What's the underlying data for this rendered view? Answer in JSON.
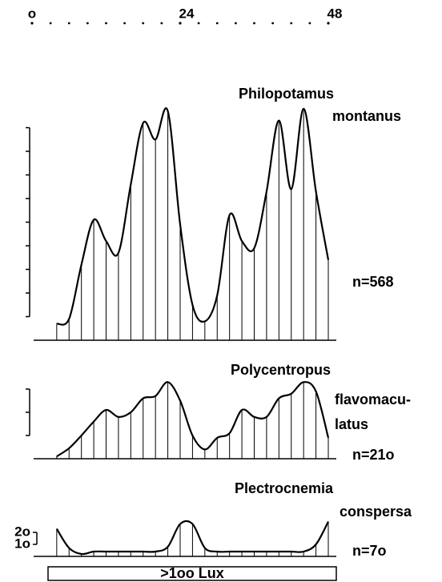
{
  "chart_data": [
    {
      "type": "area",
      "title": [
        "Philopotamus",
        "montanus"
      ],
      "annotation": "n=568",
      "xlim": [
        0,
        48
      ],
      "xticks": [
        {
          "value": 0,
          "label": "o"
        },
        24,
        48
      ],
      "minor_xticks": [
        3,
        6,
        9,
        12,
        15,
        18,
        21,
        27,
        30,
        33,
        36,
        39,
        42,
        45
      ],
      "x": [
        4,
        6,
        8,
        10,
        12,
        14,
        16,
        18,
        20,
        22,
        24,
        26,
        28,
        30,
        32,
        34,
        36,
        38,
        40,
        42,
        44,
        46,
        48
      ],
      "values": [
        7,
        9,
        32,
        51,
        42,
        37,
        66,
        92,
        85,
        97,
        49,
        15,
        8,
        19,
        53,
        42,
        39,
        63,
        93,
        64,
        98,
        63,
        34
      ],
      "color": "#000000",
      "ylim": [
        0,
        100
      ],
      "yticks": [
        10,
        20,
        30,
        40,
        50,
        60,
        70,
        80,
        90
      ]
    },
    {
      "type": "area",
      "title": [
        "Polycentropus",
        "flavomacu-",
        "latus"
      ],
      "annotation": "n=21o",
      "xlim": [
        0,
        48
      ],
      "x": [
        4,
        6,
        8,
        10,
        12,
        14,
        16,
        18,
        20,
        22,
        24,
        26,
        28,
        30,
        32,
        34,
        36,
        38,
        40,
        42,
        44,
        46,
        48
      ],
      "values": [
        1,
        4.5,
        10,
        16,
        21,
        18,
        20,
        26,
        27,
        33,
        25,
        10,
        4,
        9,
        11,
        21,
        18,
        18,
        26,
        28,
        33,
        29,
        9
      ],
      "color": "#000000",
      "ylim": [
        0,
        40
      ],
      "yticks": [
        10,
        20,
        30
      ]
    },
    {
      "type": "area",
      "title": [
        "Plectrocnemia",
        "conspersa"
      ],
      "annotation": "n=7o",
      "xlim": [
        0,
        48
      ],
      "x": [
        4,
        6,
        8,
        10,
        12,
        14,
        16,
        18,
        20,
        22,
        24,
        26,
        28,
        30,
        32,
        34,
        36,
        38,
        40,
        42,
        44,
        46,
        48
      ],
      "values": [
        23,
        7,
        2,
        4,
        4,
        4,
        4,
        4,
        4,
        8,
        27,
        27,
        7,
        4,
        4,
        4,
        4,
        4,
        4,
        4,
        4,
        10,
        29
      ],
      "color": "#000000",
      "ylim": [
        0,
        30
      ],
      "yticks": [
        {
          "value": 10,
          "label": "1o"
        },
        {
          "value": 20,
          "label": "2o"
        }
      ],
      "light_label": ">1oo Lux"
    }
  ]
}
